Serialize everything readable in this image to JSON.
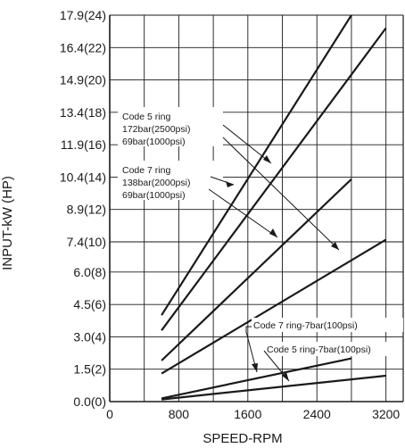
{
  "chart_data": {
    "type": "line",
    "xlabel": "SPEED-RPM",
    "ylabel": "INPUT-kW (HP)",
    "x_ticks": [
      0,
      800,
      1600,
      2400,
      3200
    ],
    "x_tick_labels": [
      "0",
      "800",
      "1600",
      "2400",
      "3200"
    ],
    "xlim": [
      0,
      3400
    ],
    "y_ticks": [
      0.0,
      1.5,
      3.0,
      4.5,
      6.0,
      7.4,
      8.9,
      10.4,
      11.9,
      13.4,
      14.9,
      16.4,
      17.9
    ],
    "y_tick_labels": [
      "0.0(0)",
      "1.5(2)",
      "3.0(4)",
      "4.5(6)",
      "6.0(8)",
      "7.4(10)",
      "8.9(12)",
      "10.4(14)",
      "11.9(16)",
      "13.4(18)",
      "14.9(20)",
      "16.4(22)",
      "17.9(24)"
    ],
    "ylim": [
      0,
      17.9
    ],
    "grid": true,
    "series": [
      {
        "x": [
          600,
          2800
        ],
        "y": [
          4.0,
          17.9
        ]
      },
      {
        "x": [
          600,
          3200
        ],
        "y": [
          3.3,
          17.3
        ]
      },
      {
        "x": [
          600,
          2800
        ],
        "y": [
          1.9,
          10.3
        ]
      },
      {
        "x": [
          600,
          3200
        ],
        "y": [
          1.3,
          7.5
        ]
      },
      {
        "x": [
          600,
          2800
        ],
        "y": [
          0.15,
          2.0
        ]
      },
      {
        "x": [
          600,
          3200
        ],
        "y": [
          0.1,
          1.2
        ]
      }
    ],
    "annotations": [
      {
        "lines": [
          "Code 5 ring",
          "172bar(2500psi)",
          "69bar(1000psi)"
        ]
      },
      {
        "lines": [
          "Code 7 ring",
          "138bar(2000psi)",
          "69bar(1000psi)"
        ]
      },
      {
        "lines": [
          "Code 7 ring-7bar(100psi)"
        ]
      },
      {
        "lines": [
          "Code 5 ring-7bar(100psi)"
        ]
      }
    ],
    "line_color": "#1a1a1a",
    "grid_color": "#1a1a1a"
  }
}
